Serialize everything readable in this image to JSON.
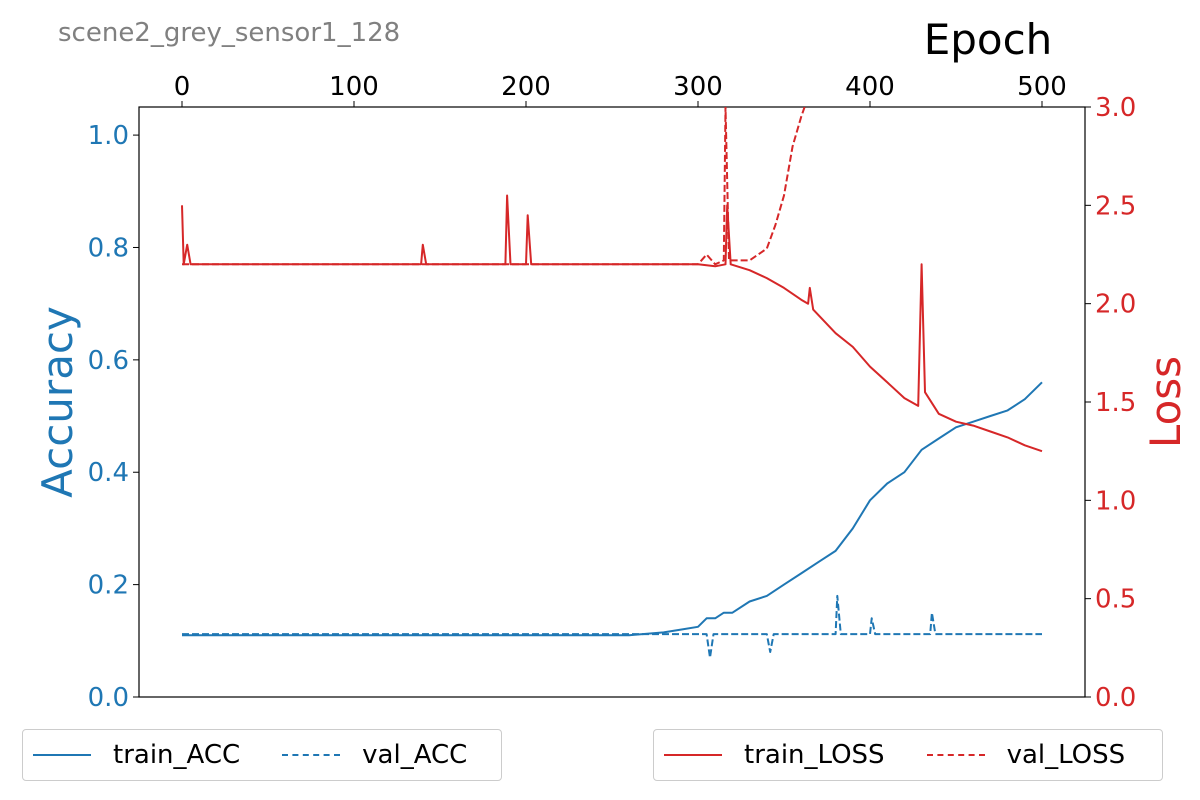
{
  "figure_title": "scene2_grey_sensor1_128",
  "colors": {
    "acc": "#1f77b4",
    "loss": "#d62728",
    "title": "#808080"
  },
  "chart_data": {
    "type": "line",
    "xlabel": "Epoch",
    "ylabel_left": "Accuracy",
    "ylabel_right": "Loss",
    "xlim": [
      -25,
      525
    ],
    "ylim_left": [
      0,
      1.05
    ],
    "ylim_right": [
      0,
      3.0
    ],
    "x_ticks": [
      0,
      100,
      200,
      300,
      400,
      500
    ],
    "y_ticks_left": [
      "0.0",
      "0.2",
      "0.4",
      "0.6",
      "0.8",
      "1.0"
    ],
    "y_ticks_right": [
      "0.0",
      "0.5",
      "1.0",
      "1.5",
      "2.0",
      "2.5",
      "3.0"
    ],
    "grid": false,
    "series": [
      {
        "name": "train_ACC",
        "axis": "left",
        "style": "solid",
        "points": [
          [
            0,
            0.11
          ],
          [
            20,
            0.11
          ],
          [
            40,
            0.11
          ],
          [
            60,
            0.11
          ],
          [
            80,
            0.11
          ],
          [
            100,
            0.11
          ],
          [
            120,
            0.11
          ],
          [
            140,
            0.11
          ],
          [
            160,
            0.11
          ],
          [
            180,
            0.11
          ],
          [
            200,
            0.11
          ],
          [
            220,
            0.11
          ],
          [
            240,
            0.11
          ],
          [
            260,
            0.11
          ],
          [
            280,
            0.115
          ],
          [
            290,
            0.12
          ],
          [
            300,
            0.125
          ],
          [
            305,
            0.14
          ],
          [
            310,
            0.14
          ],
          [
            315,
            0.15
          ],
          [
            320,
            0.15
          ],
          [
            330,
            0.17
          ],
          [
            340,
            0.18
          ],
          [
            350,
            0.2
          ],
          [
            360,
            0.22
          ],
          [
            370,
            0.24
          ],
          [
            380,
            0.26
          ],
          [
            390,
            0.3
          ],
          [
            400,
            0.35
          ],
          [
            410,
            0.38
          ],
          [
            420,
            0.4
          ],
          [
            430,
            0.44
          ],
          [
            440,
            0.46
          ],
          [
            450,
            0.48
          ],
          [
            460,
            0.49
          ],
          [
            470,
            0.5
          ],
          [
            480,
            0.51
          ],
          [
            490,
            0.53
          ],
          [
            500,
            0.56
          ]
        ]
      },
      {
        "name": "val_ACC",
        "axis": "left",
        "style": "dashed",
        "points": [
          [
            0,
            0.112
          ],
          [
            100,
            0.112
          ],
          [
            200,
            0.112
          ],
          [
            300,
            0.112
          ],
          [
            305,
            0.112
          ],
          [
            307,
            0.07
          ],
          [
            309,
            0.112
          ],
          [
            340,
            0.112
          ],
          [
            342,
            0.08
          ],
          [
            344,
            0.112
          ],
          [
            380,
            0.112
          ],
          [
            381,
            0.18
          ],
          [
            383,
            0.112
          ],
          [
            400,
            0.112
          ],
          [
            401,
            0.14
          ],
          [
            403,
            0.112
          ],
          [
            435,
            0.112
          ],
          [
            436,
            0.15
          ],
          [
            438,
            0.112
          ],
          [
            480,
            0.112
          ],
          [
            500,
            0.112
          ]
        ]
      },
      {
        "name": "train_LOSS",
        "axis": "right",
        "style": "solid",
        "points": [
          [
            0,
            2.5
          ],
          [
            1,
            2.2
          ],
          [
            3,
            2.3
          ],
          [
            5,
            2.2
          ],
          [
            50,
            2.2
          ],
          [
            139,
            2.2
          ],
          [
            140,
            2.3
          ],
          [
            142,
            2.2
          ],
          [
            188,
            2.2
          ],
          [
            189,
            2.55
          ],
          [
            191,
            2.2
          ],
          [
            200,
            2.2
          ],
          [
            201,
            2.45
          ],
          [
            203,
            2.2
          ],
          [
            300,
            2.2
          ],
          [
            310,
            2.19
          ],
          [
            316,
            2.2
          ],
          [
            317,
            2.5
          ],
          [
            319,
            2.2
          ],
          [
            330,
            2.17
          ],
          [
            340,
            2.13
          ],
          [
            350,
            2.08
          ],
          [
            360,
            2.02
          ],
          [
            364,
            2.0
          ],
          [
            365,
            2.08
          ],
          [
            367,
            1.97
          ],
          [
            380,
            1.85
          ],
          [
            390,
            1.78
          ],
          [
            400,
            1.68
          ],
          [
            410,
            1.6
          ],
          [
            420,
            1.52
          ],
          [
            428,
            1.48
          ],
          [
            430,
            2.2
          ],
          [
            432,
            1.55
          ],
          [
            440,
            1.44
          ],
          [
            450,
            1.4
          ],
          [
            460,
            1.38
          ],
          [
            470,
            1.35
          ],
          [
            480,
            1.32
          ],
          [
            490,
            1.28
          ],
          [
            500,
            1.25
          ]
        ]
      },
      {
        "name": "val_LOSS",
        "axis": "right",
        "style": "dashed",
        "points": [
          [
            0,
            2.2
          ],
          [
            100,
            2.2
          ],
          [
            200,
            2.2
          ],
          [
            300,
            2.2
          ],
          [
            305,
            2.25
          ],
          [
            310,
            2.2
          ],
          [
            315,
            2.22
          ],
          [
            316,
            3.0
          ],
          [
            318,
            2.22
          ],
          [
            320,
            2.22
          ],
          [
            330,
            2.22
          ],
          [
            340,
            2.28
          ],
          [
            345,
            2.4
          ],
          [
            350,
            2.55
          ],
          [
            355,
            2.8
          ],
          [
            360,
            2.95
          ],
          [
            362,
            3.0
          ]
        ]
      }
    ],
    "legend": [
      {
        "position": "bottom-left",
        "items": [
          "train_ACC",
          "val_ACC"
        ]
      },
      {
        "position": "bottom-right",
        "items": [
          "train_LOSS",
          "val_LOSS"
        ]
      }
    ]
  }
}
